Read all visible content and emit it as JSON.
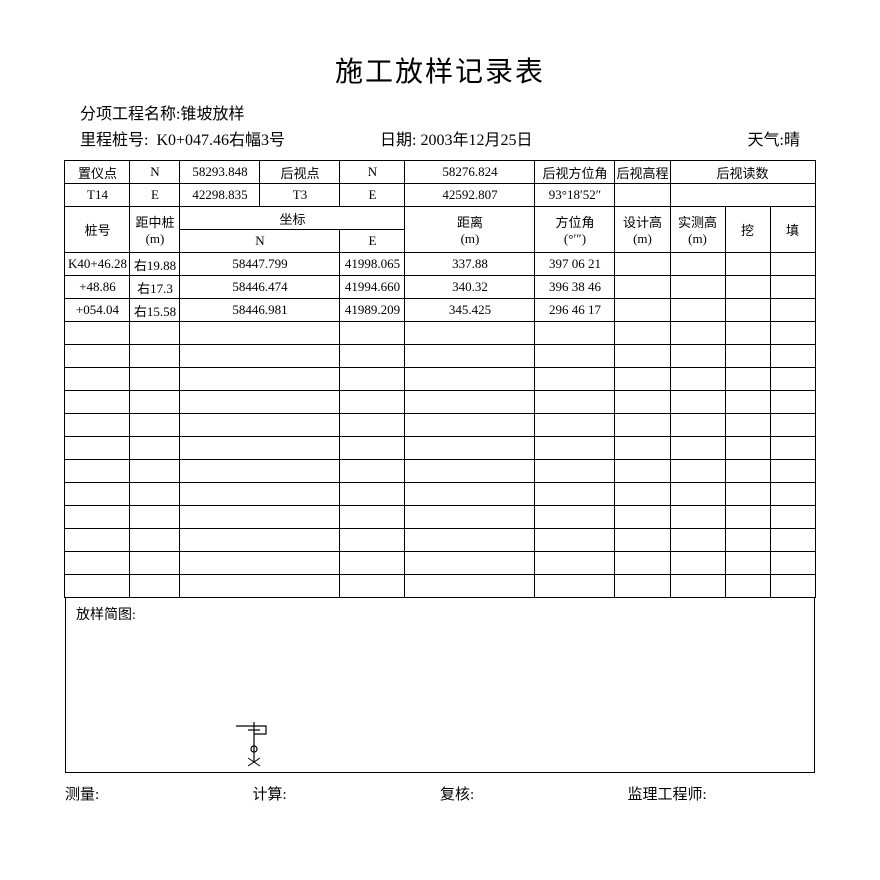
{
  "title": "施工放样记录表",
  "meta": {
    "project_label": "分项工程名称:",
    "project": "锥坡放样",
    "stake_label": "里程桩号:",
    "stake": "K0+047.46右幅3号",
    "date_label": "日期:",
    "date": "2003年12月25日",
    "weather_label": "天气:",
    "weather": "晴"
  },
  "hdr": {
    "instr_pt": "置仪点",
    "N": "N",
    "E": "E",
    "back_pt": "后视点",
    "back_az": "后视方位角",
    "back_elev": "后视高程",
    "back_read": "后视读数",
    "r1": {
      "n": "58293.848",
      "bn": "58276.824"
    },
    "r2": {
      "t14": "T14",
      "e": "42298.835",
      "t3": "T3",
      "be": "42592.807",
      "az": "93°18′52″"
    },
    "stake_no": "桩号",
    "dist_center": "距中桩",
    "dist_center_unit": "(m)",
    "coord": "坐标",
    "coord_n": "N",
    "coord_e": "E",
    "distance": "距离",
    "distance_unit": "(m)",
    "azimuth": "方位角",
    "azimuth_unit": "(°′″)",
    "design_h": "设计高",
    "design_h_unit": "(m)",
    "meas_h": "实测高",
    "meas_h_unit": "(m)",
    "cut": "挖",
    "fill": "填"
  },
  "rows": [
    {
      "stake": "K40+46.28",
      "off": "右19.88",
      "n": "58447.799",
      "e": "41998.065",
      "d": "337.88",
      "az": "397 06 21"
    },
    {
      "stake": "+48.86",
      "off": "右17.3",
      "n": "58446.474",
      "e": "41994.660",
      "d": "340.32",
      "az": "396 38 46"
    },
    {
      "stake": "+054.04",
      "off": "右15.58",
      "n": "58446.981",
      "e": "41989.209",
      "d": "345.425",
      "az": "296 46 17"
    }
  ],
  "sketch_label": "放样简图:",
  "footer": {
    "measure": "测量:",
    "calc": "计算:",
    "review": "复核:",
    "engineer": "监理工程师:"
  }
}
